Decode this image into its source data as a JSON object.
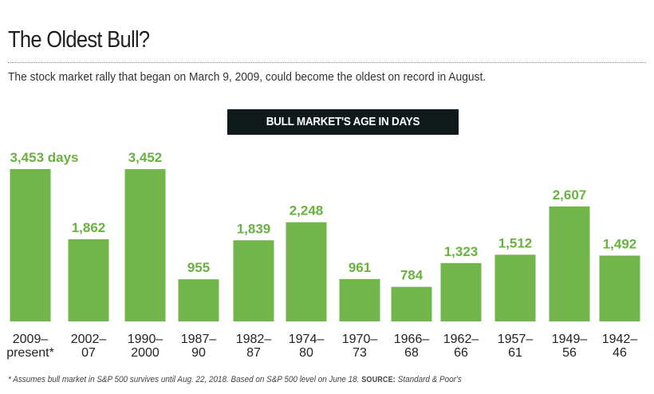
{
  "header": {
    "title": "The Oldest Bull?",
    "subtitle": "The stock market rally that began on March 9, 2009, could become the oldest on record in August."
  },
  "chart_heading": "BULL MARKET'S AGE IN DAYS",
  "colors": {
    "bar": "#72b54a",
    "label": "#6ab23f",
    "heading_bg": "#111a1a"
  },
  "chart_data": {
    "type": "bar",
    "title": "BULL MARKET'S AGE IN DAYS",
    "categories": [
      [
        "2009–",
        "present*"
      ],
      [
        "2002–",
        "07"
      ],
      [
        "1990–",
        "2000"
      ],
      [
        "1987–",
        "90"
      ],
      [
        "1982–",
        "87"
      ],
      [
        "1974–",
        "80"
      ],
      [
        "1970–",
        "73"
      ],
      [
        "1966–",
        "68"
      ],
      [
        "1962–",
        "66"
      ],
      [
        "1957–",
        "61"
      ],
      [
        "1949–",
        "56"
      ],
      [
        "1942–",
        "46"
      ]
    ],
    "values": [
      3453,
      1862,
      3452,
      955,
      1839,
      2248,
      961,
      784,
      1323,
      1512,
      2607,
      1492
    ],
    "value_labels": [
      "3,453 days",
      "1,862",
      "3,452",
      "955",
      "1,839",
      "2,248",
      "961",
      "784",
      "1,323",
      "1,512",
      "2,607",
      "1,492"
    ],
    "ylim": [
      0,
      3453
    ],
    "grid": false,
    "legend": "none"
  },
  "footnote": {
    "text": "* Assumes bull market in S&P 500 survives until Aug. 22, 2018. Based on S&P 500 level on June 18.",
    "source_label": "SOURCE:",
    "source_text": "Standard & Poor's"
  }
}
